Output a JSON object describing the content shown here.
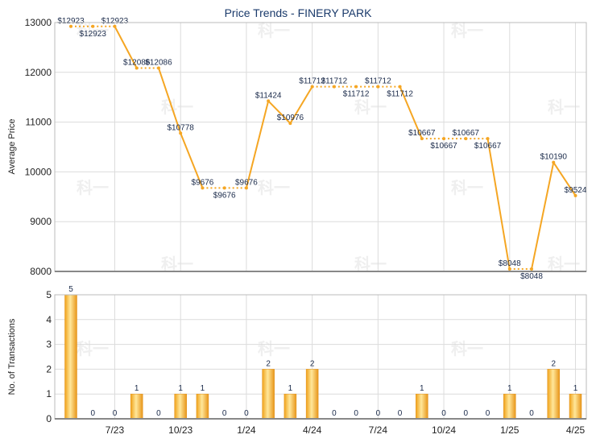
{
  "chart_data": [
    {
      "type": "line",
      "title": "Price Trends - FINERY PARK",
      "ylabel": "Average Price",
      "ylim": [
        8000,
        13000
      ],
      "y_ticks": [
        8000,
        9000,
        10000,
        11000,
        12000,
        13000
      ],
      "line_color": "#f5a623",
      "series": [
        {
          "values": [
            12923,
            12923,
            12923,
            12086,
            12086,
            10778,
            9676,
            9676,
            9676,
            11424,
            10976,
            11712,
            11712,
            11712,
            11712,
            11712,
            10667,
            10667,
            10667,
            10667,
            8048,
            8048,
            10190,
            9524
          ],
          "labels": [
            "$12923",
            "$12923",
            "$12923",
            "$12086",
            "$12086",
            "$10778",
            "$9676",
            "$9676",
            "$9676",
            "$11424",
            "$10976",
            "$11712",
            "$11712",
            "$11712",
            "$11712",
            "$11712",
            "$10667",
            "$10667",
            "$10667",
            "$10667",
            "$8048",
            "$8048",
            "$10190",
            "$9524"
          ]
        }
      ]
    },
    {
      "type": "bar",
      "ylabel": "No. of Transactions",
      "ylim": [
        0,
        5
      ],
      "y_ticks": [
        0,
        1,
        2,
        3,
        4,
        5
      ],
      "bar_color": "#f5a623",
      "values": [
        5,
        0,
        0,
        1,
        0,
        1,
        1,
        0,
        0,
        2,
        1,
        2,
        0,
        0,
        0,
        0,
        1,
        0,
        0,
        0,
        1,
        0,
        2,
        1
      ],
      "x_tick_labels": [
        "7/23",
        "10/23",
        "1/24",
        "4/24",
        "7/24",
        "10/24",
        "1/25",
        "4/25"
      ]
    }
  ]
}
